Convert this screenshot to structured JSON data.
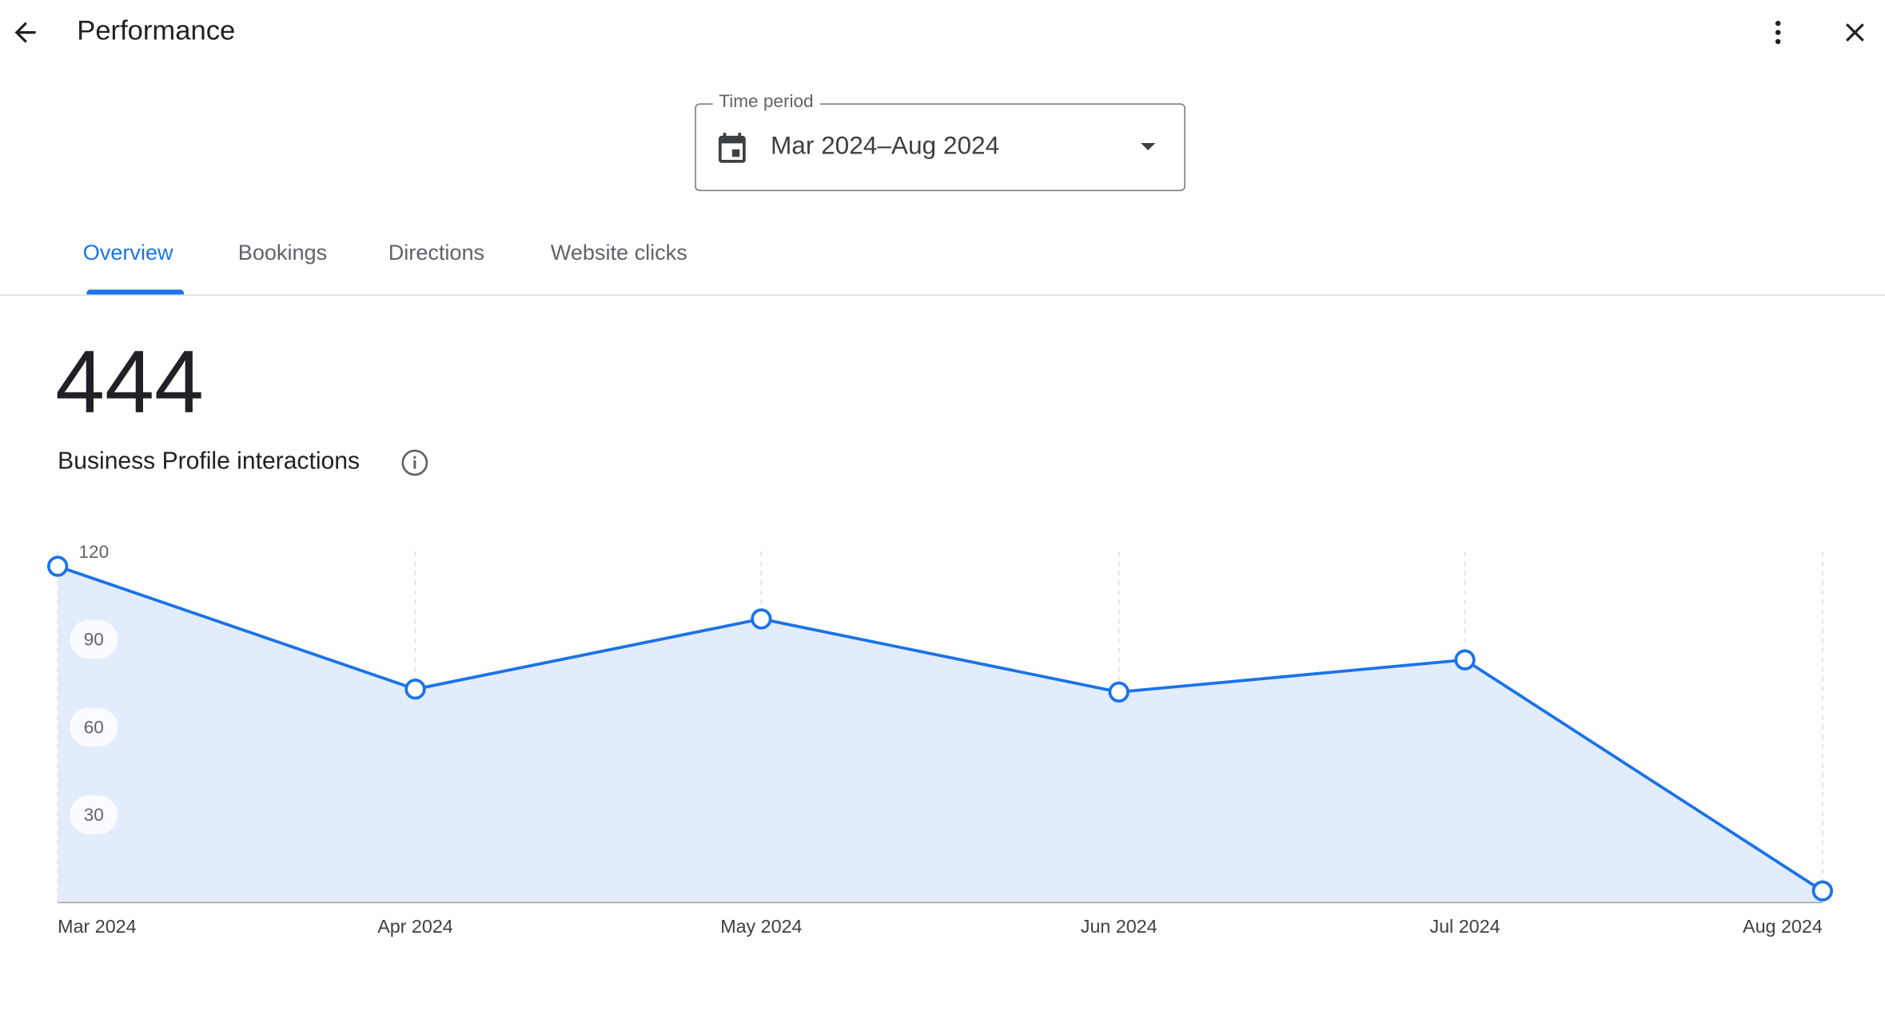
{
  "header": {
    "title": "Performance"
  },
  "time_period": {
    "label": "Time period",
    "value": "Mar 2024–Aug 2024"
  },
  "tabs": [
    "Overview",
    "Bookings",
    "Directions",
    "Website clicks"
  ],
  "summary": {
    "total": "444",
    "label": "Business Profile interactions"
  },
  "chart_data": {
    "type": "area",
    "categories": [
      "Mar 2024",
      "Apr 2024",
      "May 2024",
      "Jun 2024",
      "Jul 2024",
      "Aug 2024"
    ],
    "series": [
      {
        "name": "Business Profile interactions",
        "color": "#1a73e8",
        "values": [
          115,
          73,
          97,
          72,
          83,
          4
        ]
      }
    ],
    "ylim": [
      0,
      120
    ],
    "yticks": [
      30,
      60,
      90,
      120
    ],
    "fill": "#e3ecfb",
    "grid": true
  }
}
